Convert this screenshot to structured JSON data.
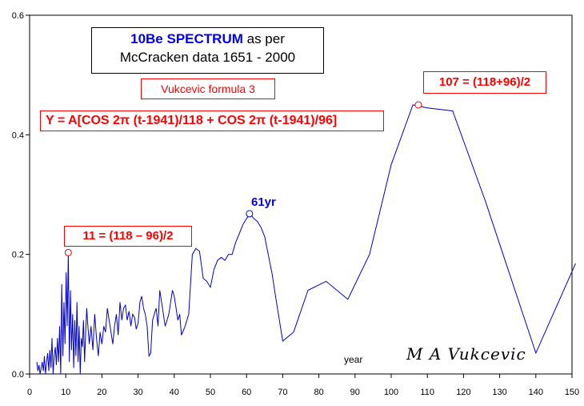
{
  "chart_data": {
    "type": "line",
    "title_line1_bold": "10Be SPECTRUM",
    "title_line1_rest": " as per",
    "title_line2": "McCracken data 1651 - 2000",
    "formula_name": "Vukcevic formula  3",
    "formula": "Y = A[COS 2π (t-1941)/118 + COS 2π (t-1941)/96]",
    "xlabel": "year",
    "signature": "M A Vukcevic",
    "xlim": [
      0,
      150
    ],
    "ylim": [
      0,
      0.6
    ],
    "x_ticks": [
      "0",
      "10",
      "20",
      "30",
      "40",
      "50",
      "60",
      "70",
      "80",
      "90",
      "100",
      "110",
      "120",
      "130",
      "140",
      "150"
    ],
    "y_ticks": [
      "0.0",
      "0.2",
      "0.4",
      "0.6"
    ],
    "grid": false,
    "series_color": "#0000cc",
    "marker_color": "#ff0000",
    "annotations": [
      {
        "label": "11 = (118 – 96)/2",
        "x": 10.7,
        "y": 0.203,
        "color": "#ff0000"
      },
      {
        "label": "61yr",
        "x": 60.8,
        "y": 0.268,
        "color": "#0000ee"
      },
      {
        "label": "107 = (118+96)/2",
        "x": 107.5,
        "y": 0.45,
        "color": "#ff0000"
      }
    ],
    "series": [
      {
        "x": [
          2,
          2.3,
          2.6,
          2.9,
          3.2,
          3.5,
          3.8,
          4.1,
          4.4,
          4.7,
          5,
          5.3,
          5.6,
          5.9,
          6.2,
          6.5,
          6.8,
          7.1,
          7.4,
          7.7,
          8,
          8.3,
          8.6,
          8.9,
          9.2,
          9.5,
          9.8,
          10.1,
          10.4,
          10.7,
          11,
          11.3,
          11.6,
          11.9,
          12.2,
          12.5,
          12.8,
          13.1,
          13.4,
          13.7,
          14,
          14.3,
          14.6,
          14.9,
          15.2,
          15.5,
          15.8,
          16,
          16.5,
          17,
          17.5,
          18,
          18.5,
          19,
          19.5,
          20,
          20.5,
          21,
          21.5,
          22,
          22.5,
          23,
          23.5,
          24,
          24.5,
          25,
          25.5,
          26,
          26.5,
          27,
          27.5,
          28,
          28.5,
          29,
          29.5,
          30,
          30.5,
          31,
          31.5,
          32,
          32.5,
          33,
          33.5,
          34,
          34.5,
          35,
          35.5,
          36,
          36.5,
          37,
          37.5,
          38,
          38.5,
          39,
          39.5,
          40,
          40.5,
          41,
          41.5,
          42,
          43,
          44,
          45,
          46,
          47,
          48,
          49,
          50,
          51,
          52,
          53,
          54,
          55,
          56,
          57,
          58,
          59,
          60,
          61,
          62,
          63,
          64,
          65,
          66,
          67,
          68,
          70,
          73,
          77,
          82,
          88,
          94,
          100,
          106,
          110,
          117,
          126,
          140,
          151
        ],
        "y": [
          0.02,
          0.005,
          0.015,
          0.0,
          0.01,
          0.02,
          0.005,
          0.03,
          0.0,
          0.02,
          0.035,
          0.005,
          0.04,
          0.01,
          0.06,
          0.0,
          0.03,
          0.045,
          0.015,
          0.06,
          0.02,
          0.08,
          0.0,
          0.15,
          0.03,
          0.12,
          0.05,
          0.17,
          0.08,
          0.203,
          0.02,
          0.14,
          0.04,
          0.1,
          0.01,
          0.09,
          0.03,
          0.12,
          0.02,
          0.08,
          0.0,
          0.06,
          0.045,
          0.09,
          0.02,
          0.07,
          0.11,
          0.09,
          0.05,
          0.08,
          0.04,
          0.1,
          0.06,
          0.03,
          0.07,
          0.05,
          0.08,
          0.07,
          0.11,
          0.09,
          0.07,
          0.05,
          0.08,
          0.1,
          0.065,
          0.12,
          0.09,
          0.11,
          0.115,
          0.09,
          0.105,
          0.08,
          0.1,
          0.095,
          0.075,
          0.085,
          0.12,
          0.13,
          0.11,
          0.1,
          0.08,
          0.03,
          0.035,
          0.09,
          0.1,
          0.11,
          0.08,
          0.14,
          0.12,
          0.1,
          0.08,
          0.09,
          0.1,
          0.12,
          0.14,
          0.13,
          0.11,
          0.09,
          0.1,
          0.065,
          0.08,
          0.1,
          0.2,
          0.21,
          0.205,
          0.16,
          0.155,
          0.145,
          0.175,
          0.19,
          0.195,
          0.19,
          0.2,
          0.2,
          0.22,
          0.235,
          0.25,
          0.26,
          0.268,
          0.26,
          0.255,
          0.245,
          0.23,
          0.2,
          0.17,
          0.13,
          0.055,
          0.07,
          0.14,
          0.155,
          0.125,
          0.2,
          0.35,
          0.45,
          0.445,
          0.44,
          0.29,
          0.035,
          0.185
        ]
      }
    ]
  }
}
